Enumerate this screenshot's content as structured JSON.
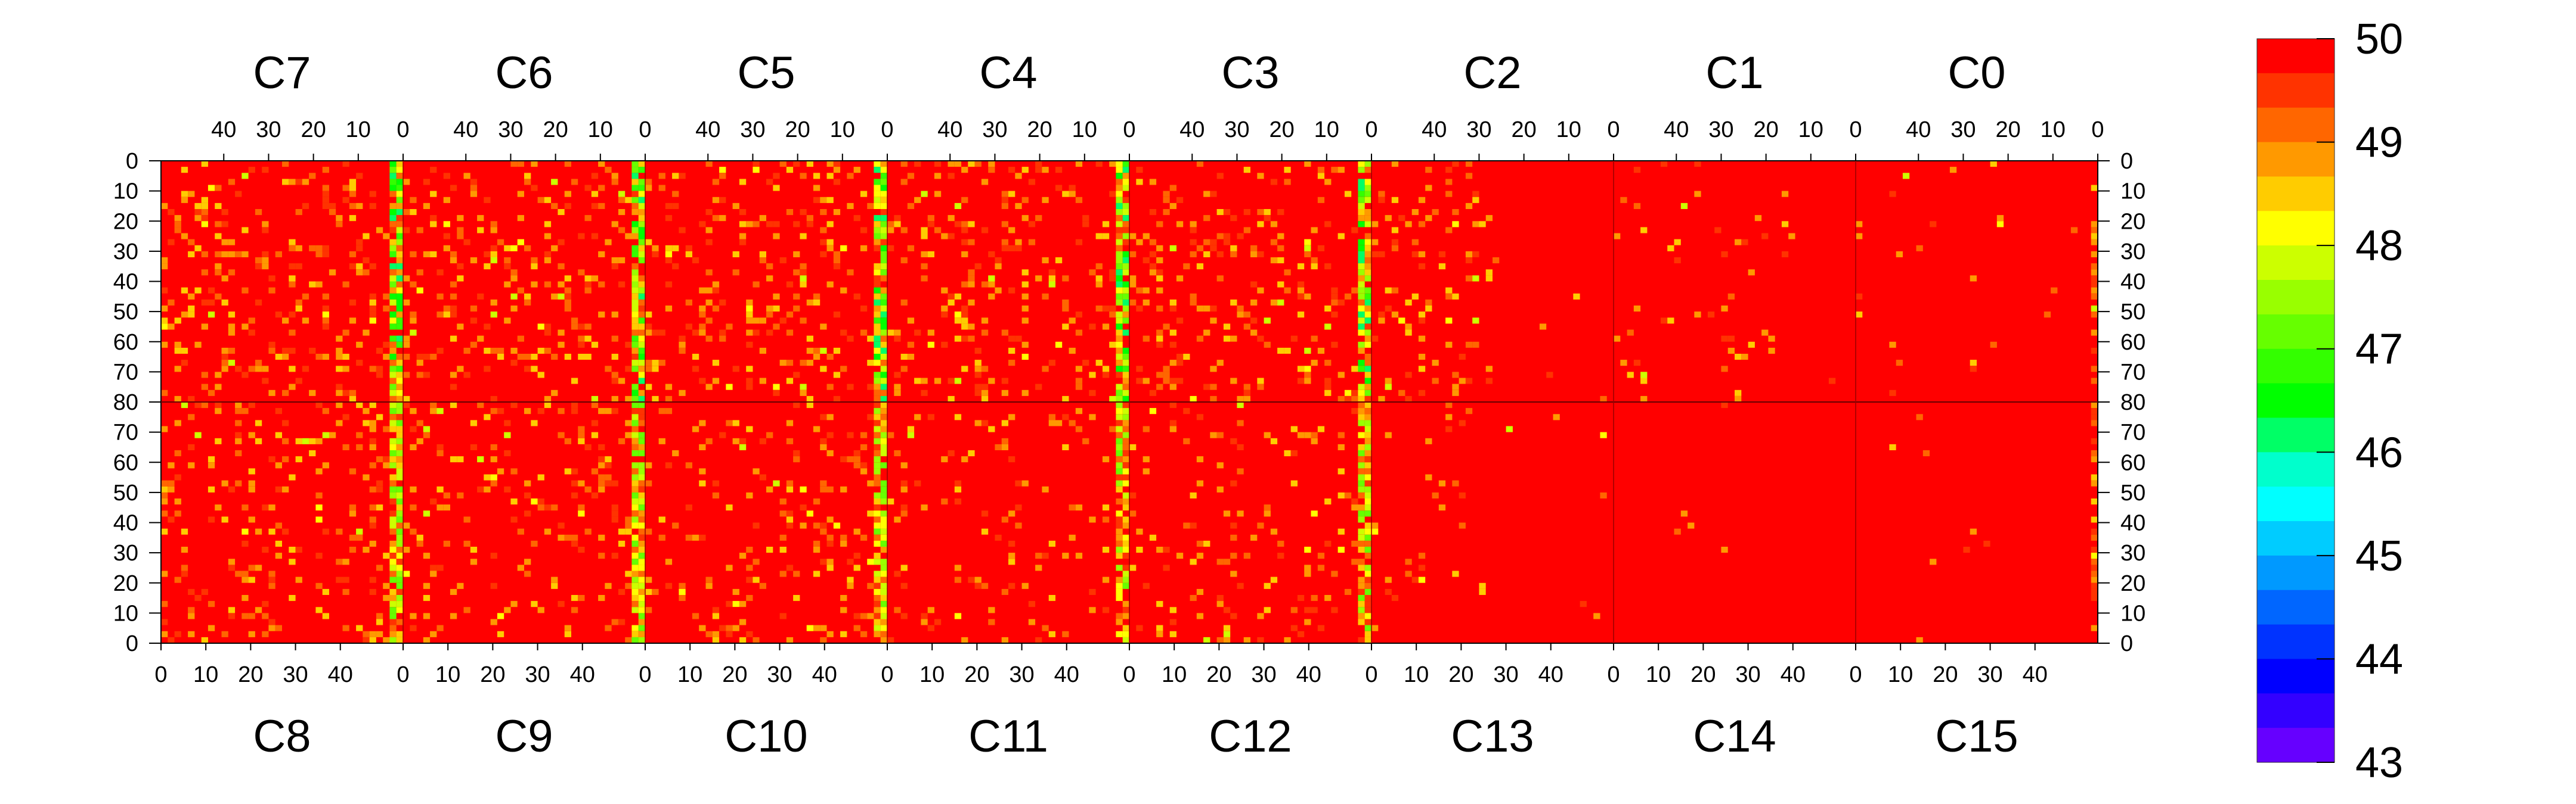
{
  "chart_data": {
    "type": "heatmap",
    "title": "",
    "colorbar": {
      "ticks": [
        "50",
        "49",
        "48",
        "47",
        "46",
        "45",
        "44",
        "43"
      ],
      "range": [
        43,
        50
      ],
      "colors": [
        "#ff0000",
        "#ff3300",
        "#ff6600",
        "#ff9900",
        "#ffcc00",
        "#ffff00",
        "#ccff00",
        "#99ff00",
        "#66ff00",
        "#33ff00",
        "#00ff00",
        "#00ff66",
        "#00ffcc",
        "#00ffff",
        "#00ccff",
        "#0099ff",
        "#0066ff",
        "#0033ff",
        "#0000ff",
        "#3300ff",
        "#6600ff"
      ]
    },
    "top_panels": [
      "C7",
      "C6",
      "C5",
      "C4",
      "C3",
      "C2",
      "C1",
      "C0"
    ],
    "bottom_panels": [
      "C8",
      "C9",
      "C10",
      "C11",
      "C12",
      "C13",
      "C14",
      "C15"
    ],
    "top_x_ticks": [
      "40",
      "30",
      "20",
      "10",
      "0"
    ],
    "bottom_x_ticks": [
      "0",
      "10",
      "20",
      "30",
      "40"
    ],
    "y_ticks_top_half": [
      "0",
      "10",
      "20",
      "30",
      "40",
      "50",
      "60",
      "70",
      "80"
    ],
    "y_ticks_bottom_half": [
      "70",
      "60",
      "50",
      "40",
      "30",
      "20",
      "10",
      "0"
    ],
    "columns_per_panel": 54,
    "rows_per_half": 80,
    "value_note": "Predominantly 50 (red); scattered pixels ~48-49.5 (orange/yellow); vertical bands near each panel's 0 edge reach ~45-47. C13, C14, C15 and right parts of C2, C1, C0 nearly uniform 50."
  }
}
